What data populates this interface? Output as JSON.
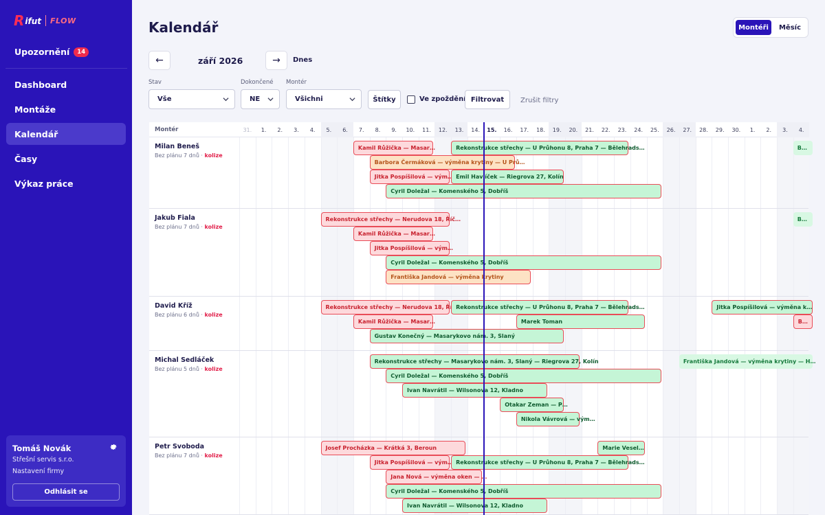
{
  "app": {
    "logo_r": "R",
    "logo_word": "ifut",
    "logo_sub": "FLOW"
  },
  "sidebar": {
    "alert": {
      "label": "Upozornění",
      "count": "14"
    },
    "items": [
      {
        "label": "Dashboard"
      },
      {
        "label": "Montáže"
      },
      {
        "label": "Kalendář",
        "active": true
      },
      {
        "label": "Časy"
      },
      {
        "label": "Výkaz práce"
      }
    ],
    "user": {
      "name": "Tomáš Novák",
      "company": "Střešní servis s.r.o.",
      "settings": "Nastavení firmy",
      "logout": "Odhlásit se"
    }
  },
  "header": {
    "title": "Kalendář",
    "view_toggle": {
      "active": "Montéři",
      "other": "Měsíc"
    }
  },
  "nav": {
    "prev": "←",
    "next": "→",
    "month": "září 2026",
    "today": "Dnes"
  },
  "filters": {
    "stav": {
      "label": "Stav",
      "value": "Vše"
    },
    "dokoncene": {
      "label": "Dokončené",
      "value": "NE"
    },
    "monter": {
      "label": "Montér",
      "value": "Všichni"
    },
    "stitky": "Štítky",
    "zpozdeni": "Ve zpoždění",
    "filtrovat": "Filtrovat",
    "reset": "Zrušit filtry"
  },
  "calendar": {
    "column_label": "Montér",
    "days": [
      "31.",
      "1.",
      "2.",
      "3.",
      "4.",
      "5.",
      "6.",
      "7.",
      "8.",
      "9.",
      "10.",
      "11.",
      "12.",
      "13.",
      "14.",
      "15.",
      "16.",
      "17.",
      "18.",
      "19.",
      "20.",
      "21.",
      "22.",
      "23.",
      "24.",
      "25.",
      "26.",
      "27.",
      "28.",
      "29.",
      "30.",
      "1.",
      "2.",
      "3.",
      "4."
    ],
    "today_index": 15,
    "rows": [
      {
        "name": "Milan Beneš",
        "sub": "Bez plánu 7 dnů · ",
        "conflict": "kolize",
        "events": [
          {
            "text": "Kamil Růžička — Masar…",
            "start": 7,
            "end": 11.9,
            "lane": 0,
            "color": "red"
          },
          {
            "text": "Rekonstrukce střechy — U Průhonu 8, Praha 7 — Bělehrads…",
            "start": 13,
            "end": 23.9,
            "lane": 0,
            "color": "green"
          },
          {
            "text": "B…",
            "start": 34,
            "end": 35.2,
            "lane": 0,
            "color": "lg"
          },
          {
            "text": "Barbora Čermáková — výměna krytiny — U Prů…",
            "start": 8,
            "end": 16.9,
            "lane": 1,
            "color": "orange"
          },
          {
            "text": "Jitka Pospíšilová — vým…",
            "start": 8,
            "end": 12.9,
            "lane": 2,
            "color": "red"
          },
          {
            "text": "Emil Havlíček — Riegrova 27, Kolín",
            "start": 13,
            "end": 19.9,
            "lane": 2,
            "color": "green"
          },
          {
            "text": "Cyril Doležal — Komenského 5, Dobříš",
            "start": 9,
            "end": 25.9,
            "lane": 3,
            "color": "green"
          }
        ]
      },
      {
        "name": "Jakub Fiala",
        "sub": "Bez plánu 7 dnů · ",
        "conflict": "kolize",
        "events": [
          {
            "text": "Rekonstrukce střechy — Nerudova 18, Říč…",
            "start": 5,
            "end": 12.9,
            "lane": 0,
            "color": "red"
          },
          {
            "text": "B…",
            "start": 34,
            "end": 35.2,
            "lane": 0,
            "color": "lg"
          },
          {
            "text": "Kamil Růžička — Masar…",
            "start": 7,
            "end": 11.9,
            "lane": 1,
            "color": "red"
          },
          {
            "text": "Jitka Pospíšilová — vým…",
            "start": 8,
            "end": 12.9,
            "lane": 2,
            "color": "red"
          },
          {
            "text": "Cyril Doležal — Komenského 5, Dobříš",
            "start": 9,
            "end": 25.9,
            "lane": 3,
            "color": "green"
          },
          {
            "text": "Františka Jandová — výměna krytiny",
            "start": 9,
            "end": 17.9,
            "lane": 4,
            "color": "orange"
          }
        ]
      },
      {
        "name": "David Kříž",
        "sub": "Bez plánu 6 dnů · ",
        "conflict": "kolize",
        "events": [
          {
            "text": "Rekonstrukce střechy — Nerudova 18, Říč…",
            "start": 5,
            "end": 12.9,
            "lane": 0,
            "color": "red"
          },
          {
            "text": "Rekonstrukce střechy — U Průhonu 8, Praha 7 — Bělehrads…",
            "start": 13,
            "end": 23.9,
            "lane": 0,
            "color": "green"
          },
          {
            "text": "Jitka Pospíšilová — výměna k…",
            "start": 29,
            "end": 35.2,
            "lane": 0,
            "color": "green"
          },
          {
            "text": "Kamil Růžička — Masar…",
            "start": 7,
            "end": 11.9,
            "lane": 1,
            "color": "red"
          },
          {
            "text": "Marek Toman",
            "start": 17,
            "end": 24.9,
            "lane": 1,
            "color": "green"
          },
          {
            "text": "B…",
            "start": 34,
            "end": 35.2,
            "lane": 1,
            "color": "red"
          },
          {
            "text": "Gustav Konečný — Masarykovo nám. 3, Slaný",
            "start": 8,
            "end": 19.9,
            "lane": 2,
            "color": "green"
          }
        ]
      },
      {
        "name": "Michal Sedláček",
        "sub": "Bez plánu 5 dnů · ",
        "conflict": "kolize",
        "events": [
          {
            "text": "Rekonstrukce střechy — Masarykovo nám. 3, Slaný — Riegrova 27, Kolín",
            "start": 8,
            "end": 20.9,
            "lane": 0,
            "color": "green"
          },
          {
            "text": "Františka Jandová — výměna krytiny — H…",
            "start": 27,
            "end": 35.2,
            "lane": 0,
            "color": "lg"
          },
          {
            "text": "Cyril Doležal — Komenského 5, Dobříš",
            "start": 9,
            "end": 25.9,
            "lane": 1,
            "color": "green"
          },
          {
            "text": "Ivan Navrátil — Wilsonova 12, Kladno",
            "start": 10,
            "end": 18.9,
            "lane": 2,
            "color": "green"
          },
          {
            "text": "Otakar Zeman — P…",
            "start": 16,
            "end": 19.9,
            "lane": 3,
            "color": "green"
          },
          {
            "text": "Nikola Vávrová — vým…",
            "start": 17,
            "end": 20.9,
            "lane": 4,
            "color": "green"
          }
        ]
      },
      {
        "name": "Petr Svoboda",
        "sub": "Bez plánu 7 dnů · ",
        "conflict": "kolize",
        "events": [
          {
            "text": "Josef Procházka — Krátká 3, Beroun",
            "start": 5,
            "end": 13.9,
            "lane": 0,
            "color": "red"
          },
          {
            "text": "Marie Vesel…",
            "start": 22,
            "end": 24.9,
            "lane": 0,
            "color": "green"
          },
          {
            "text": "Jitka Pospíšilová — vým…",
            "start": 8,
            "end": 12.9,
            "lane": 1,
            "color": "red"
          },
          {
            "text": "Rekonstrukce střechy — U Průhonu 8, Praha 7 — Bělehrads…",
            "start": 13,
            "end": 23.9,
            "lane": 1,
            "color": "green"
          },
          {
            "text": "Jana Nová — výměna oken — …",
            "start": 9,
            "end": 14.9,
            "lane": 2,
            "color": "red"
          },
          {
            "text": "Cyril Doležal — Komenského 5, Dobříš",
            "start": 9,
            "end": 25.9,
            "lane": 3,
            "color": "green"
          },
          {
            "text": "Ivan Navrátil — Wilsonova 12, Kladno",
            "start": 10,
            "end": 18.9,
            "lane": 4,
            "color": "green"
          }
        ]
      }
    ]
  }
}
